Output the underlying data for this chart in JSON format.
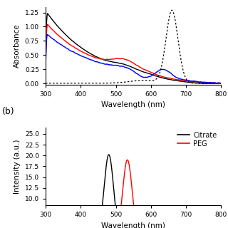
{
  "panel_a": {
    "xlim": [
      300,
      800
    ],
    "ylim": [
      -0.02,
      1.35
    ],
    "yticks": [
      0.0,
      0.25,
      0.5,
      0.75,
      1.0,
      1.25
    ],
    "xticks": [
      300,
      400,
      500,
      600,
      700,
      800
    ],
    "xlabel": "Wavelength (nm)",
    "ylabel": "Absorbance"
  },
  "panel_b": {
    "xlim": [
      300,
      800
    ],
    "ylim": [
      8.5,
      26.5
    ],
    "yticks": [
      10.0,
      12.5,
      15.0,
      17.5,
      20.0,
      22.5,
      25.0
    ],
    "xticks": [
      300,
      400,
      500,
      600,
      700,
      800
    ],
    "xlabel": "Wavelength (nm)",
    "ylabel": "Intensity (a.u.)"
  },
  "background_color": "#ffffff"
}
